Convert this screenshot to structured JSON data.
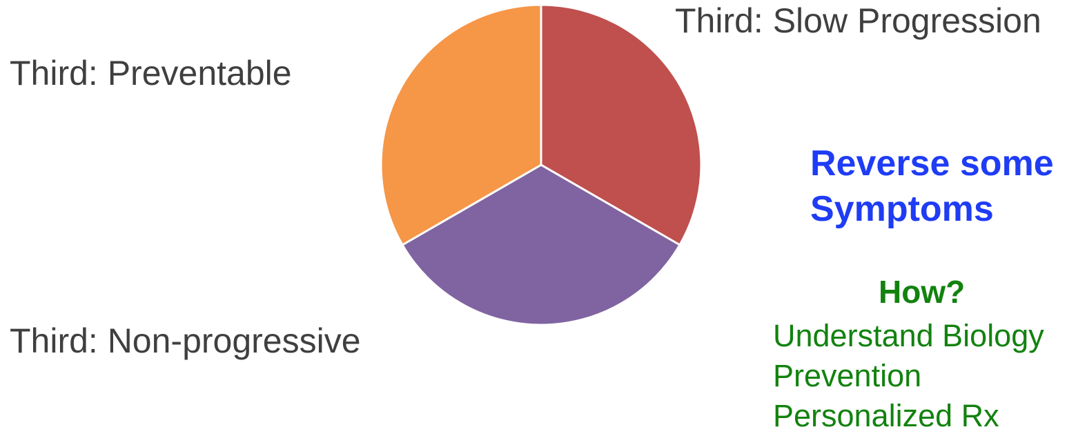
{
  "chart_data": {
    "type": "pie",
    "slices": [
      {
        "label": "Third: Slow Progression",
        "value": 33.3,
        "color": "#bf504e"
      },
      {
        "label": "Third: Non-progressive",
        "value": 33.3,
        "color": "#8064a1"
      },
      {
        "label": "Third: Preventable",
        "value": 33.3,
        "color": "#f69647"
      }
    ],
    "start_angle_deg": 0,
    "direction": "clockwise",
    "separator_color": "#ffffff"
  },
  "headline": {
    "lines": [
      "Reverse some",
      "Symptoms"
    ],
    "color": "#1f3cf5"
  },
  "how": {
    "title": "How?",
    "items": [
      "Understand Biology",
      "Prevention",
      "Personalized Rx"
    ],
    "color": "#12820f"
  },
  "label_color": "#3f3f3f"
}
